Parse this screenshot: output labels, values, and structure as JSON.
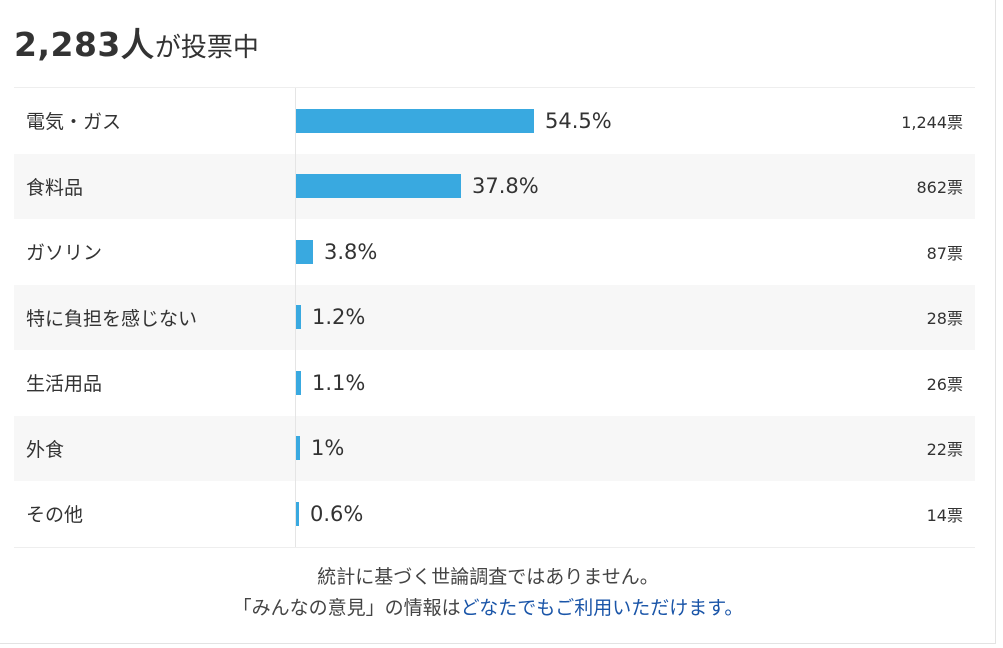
{
  "header": {
    "count": "2,283",
    "count_unit": "人",
    "suffix": "が投票中"
  },
  "chart_data": {
    "type": "bar",
    "orientation": "horizontal",
    "total_votes": 2283,
    "categories": [
      "電気・ガス",
      "食料品",
      "ガソリン",
      "特に負担を感じない",
      "生活用品",
      "外食",
      "その他"
    ],
    "percent_labels": [
      "54.5%",
      "37.8%",
      "3.8%",
      "1.2%",
      "1.1%",
      "1%",
      "0.6%"
    ],
    "values": [
      54.5,
      37.8,
      3.8,
      1.2,
      1.1,
      1.0,
      0.6
    ],
    "vote_labels": [
      "1,244票",
      "862票",
      "87票",
      "28票",
      "26票",
      "22票",
      "14票"
    ],
    "votes": [
      1244,
      862,
      87,
      28,
      26,
      22,
      14
    ],
    "xlim": [
      0,
      100
    ],
    "grid": false,
    "bar_color": "#39a9e0"
  },
  "footer": {
    "line1": "統計に基づく世論調査ではありません。",
    "line2_prefix": "「みんなの意見」の情報は",
    "line2_link": "どなたでもご利用いただけます。"
  }
}
